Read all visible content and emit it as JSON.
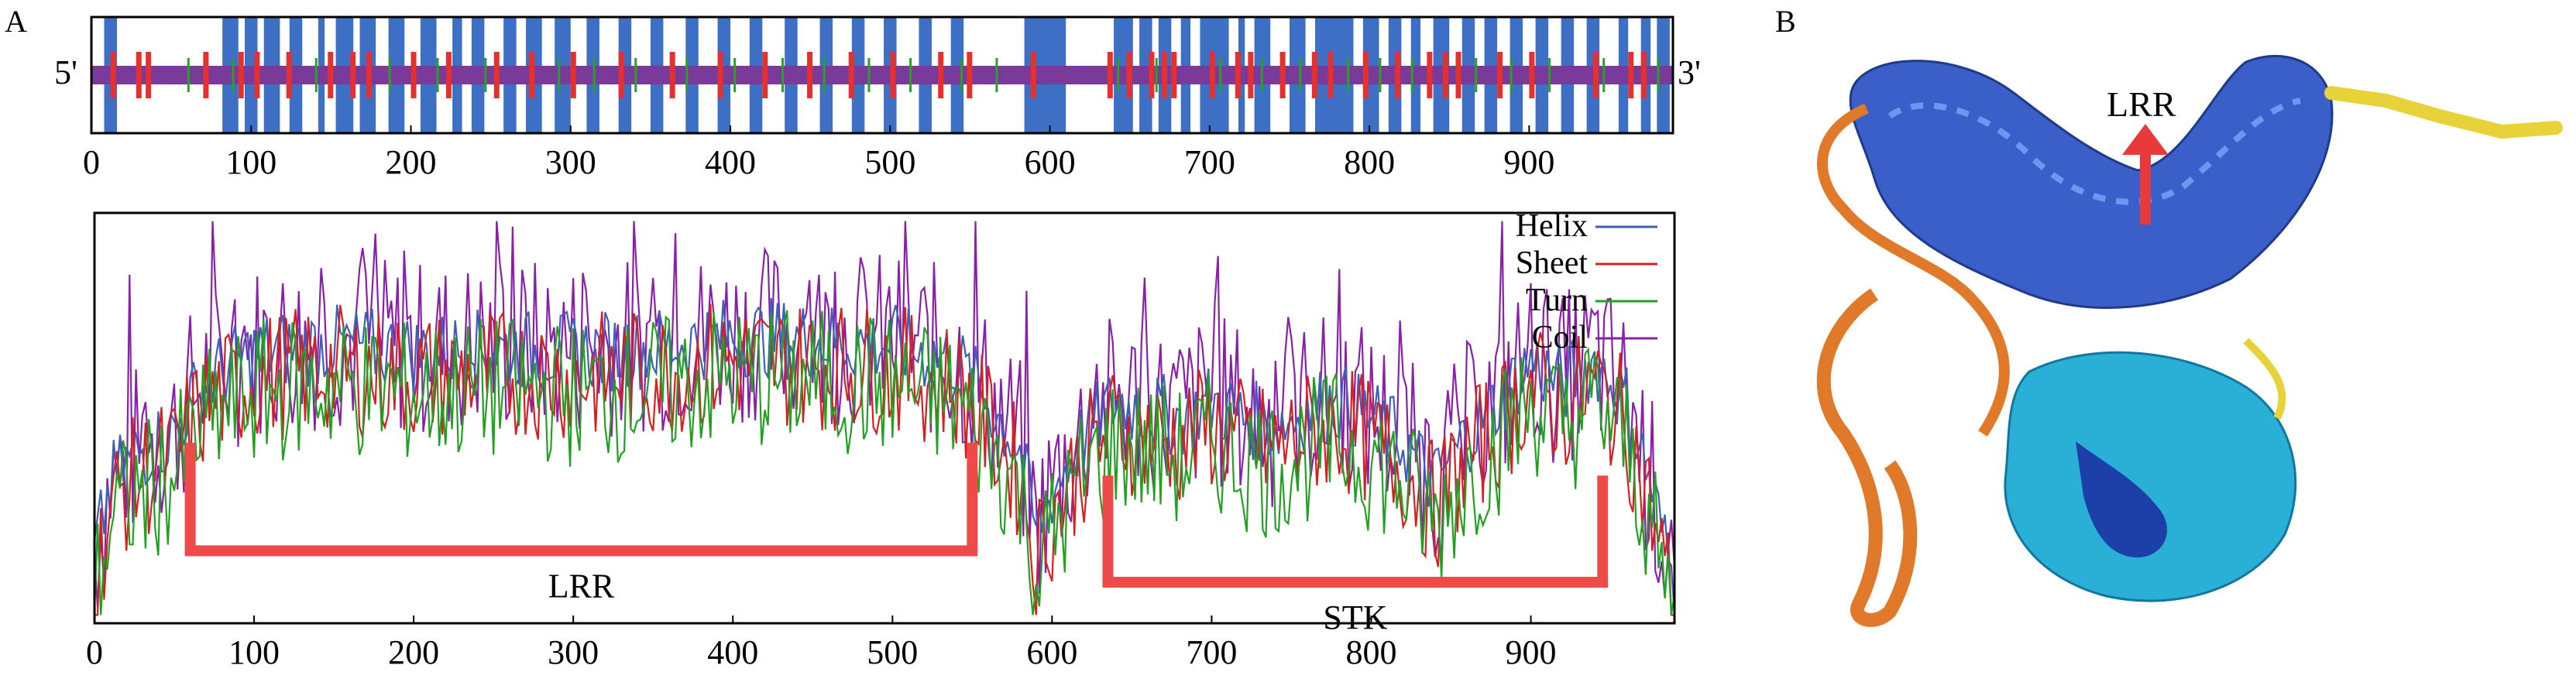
{
  "panels": {
    "a_label": "A",
    "b_label": "B"
  },
  "chart_data": [
    {
      "type": "track",
      "panel": "A-top",
      "end_labels": {
        "left": "5'",
        "right": "3'"
      },
      "xlim": [
        0,
        990
      ],
      "xticks": [
        0,
        100,
        200,
        300,
        400,
        500,
        600,
        700,
        800,
        900
      ],
      "bar_color": "#7a3a9a",
      "helix_color": "#3d6fc4",
      "sheet_color": "#e53030",
      "turn_color": "#2aa02a",
      "helix_blocks": [
        [
          8,
          16
        ],
        [
          82,
          92
        ],
        [
          96,
          104
        ],
        [
          108,
          118
        ],
        [
          124,
          132
        ],
        [
          142,
          146
        ],
        [
          153,
          164
        ],
        [
          168,
          178
        ],
        [
          186,
          196
        ],
        [
          206,
          216
        ],
        [
          226,
          232
        ],
        [
          238,
          246
        ],
        [
          258,
          266
        ],
        [
          272,
          282
        ],
        [
          290,
          300
        ],
        [
          310,
          318
        ],
        [
          330,
          338
        ],
        [
          350,
          358
        ],
        [
          372,
          380
        ],
        [
          392,
          400
        ],
        [
          412,
          420
        ],
        [
          434,
          442
        ],
        [
          456,
          464
        ],
        [
          476,
          484
        ],
        [
          496,
          504
        ],
        [
          518,
          526
        ],
        [
          538,
          546
        ],
        [
          584,
          610
        ],
        [
          640,
          652
        ],
        [
          656,
          664
        ],
        [
          668,
          676
        ],
        [
          682,
          688
        ],
        [
          694,
          712
        ],
        [
          718,
          722
        ],
        [
          728,
          738
        ],
        [
          750,
          760
        ],
        [
          766,
          790
        ],
        [
          796,
          806
        ],
        [
          812,
          820
        ],
        [
          826,
          832
        ],
        [
          840,
          850
        ],
        [
          858,
          866
        ],
        [
          872,
          880
        ],
        [
          888,
          896
        ],
        [
          904,
          912
        ],
        [
          920,
          928
        ],
        [
          936,
          944
        ],
        [
          956,
          962
        ],
        [
          970,
          976
        ],
        [
          980,
          988
        ]
      ],
      "sheet_marks": [
        12,
        28,
        34,
        70,
        92,
        102,
        122,
        148,
        162,
        172,
        200,
        222,
        252,
        274,
        300,
        330,
        362,
        392,
        420,
        448,
        474,
        500,
        530,
        548,
        588,
        636,
        648,
        662,
        670,
        676,
        700,
        716,
        724,
        744,
        764,
        774,
        796,
        816,
        836,
        846,
        854,
        880,
        900,
        940,
        962,
        970
      ],
      "turn_marks": [
        60,
        88,
        140,
        186,
        216,
        246,
        292,
        314,
        340,
        372,
        402,
        432,
        458,
        486,
        512,
        544,
        566,
        642,
        666,
        706,
        732,
        756,
        786,
        806,
        826,
        866,
        888,
        912,
        946,
        980
      ]
    },
    {
      "type": "line",
      "panel": "A-bottom",
      "xlim": [
        0,
        990
      ],
      "ylim": [
        0,
        1
      ],
      "xticks": [
        0,
        100,
        200,
        300,
        400,
        500,
        600,
        700,
        800,
        900
      ],
      "series": [
        {
          "name": "Helix",
          "color": "#3d5fb8"
        },
        {
          "name": "Sheet",
          "color": "#d42020"
        },
        {
          "name": "Turn",
          "color": "#22a022"
        },
        {
          "name": "Coil",
          "color": "#8a20a8"
        }
      ],
      "profile": {
        "x": [
          0,
          10,
          20,
          30,
          40,
          50,
          60,
          70,
          100,
          150,
          200,
          250,
          300,
          350,
          400,
          450,
          500,
          540,
          560,
          580,
          590,
          600,
          620,
          640,
          660,
          680,
          700,
          720,
          740,
          760,
          780,
          800,
          820,
          840,
          860,
          880,
          900,
          920,
          940,
          960,
          975,
          990
        ],
        "y": [
          0.12,
          0.3,
          0.35,
          0.38,
          0.4,
          0.42,
          0.5,
          0.55,
          0.62,
          0.64,
          0.62,
          0.63,
          0.62,
          0.63,
          0.66,
          0.65,
          0.64,
          0.6,
          0.5,
          0.38,
          0.18,
          0.28,
          0.42,
          0.5,
          0.48,
          0.46,
          0.5,
          0.46,
          0.44,
          0.48,
          0.5,
          0.46,
          0.4,
          0.3,
          0.42,
          0.5,
          0.6,
          0.54,
          0.6,
          0.5,
          0.3,
          0.05
        ]
      },
      "regions": [
        {
          "label": "LRR",
          "x": [
            60,
            550
          ],
          "color": "#ef4a4a"
        },
        {
          "label": "STK",
          "x": [
            635,
            945
          ],
          "color": "#ef4a4a"
        }
      ],
      "legend_position": "top-right"
    }
  ],
  "structure": {
    "label": "LRR",
    "arrow_color": "#e83a3a"
  }
}
